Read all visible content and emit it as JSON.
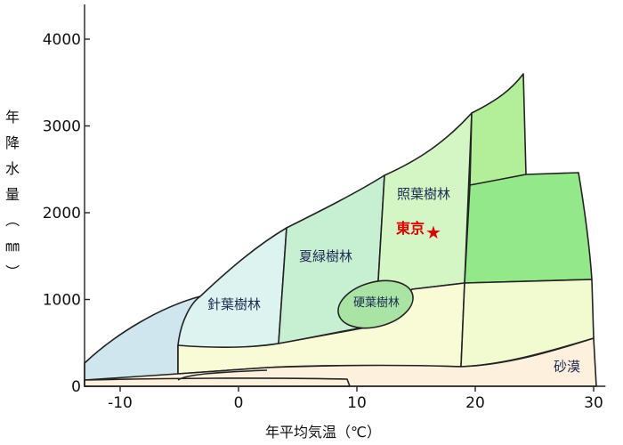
{
  "chart_data": {
    "type": "diagram",
    "xlabel": "年平均気温（℃）",
    "ylabel_chars": [
      "年",
      "降",
      "水",
      "量",
      "（",
      "㎜",
      "）"
    ],
    "xlim": [
      -13.2,
      31
    ],
    "ylim": [
      0,
      4400
    ],
    "x_ticks": [
      {
        "value": -10,
        "label": "-10"
      },
      {
        "value": 0,
        "label": "0"
      },
      {
        "value": 10,
        "label": "10"
      },
      {
        "value": 20,
        "label": "20"
      },
      {
        "value": 30,
        "label": "30"
      }
    ],
    "y_ticks": [
      {
        "value": 0,
        "label": "0"
      },
      {
        "value": 1000,
        "label": "1000"
      },
      {
        "value": 2000,
        "label": "2000"
      },
      {
        "value": 3000,
        "label": "3000"
      },
      {
        "value": 4000,
        "label": "4000"
      }
    ],
    "labels": {
      "conifer": "針葉樹林",
      "summer_green": "夏緑樹林",
      "laurel": "照葉樹林",
      "sclerophyll": "硬葉樹林",
      "desert": "砂漠",
      "tokyo": "東京"
    },
    "tokyo_point": {
      "x": 16.3,
      "y": 1800
    },
    "colors": {
      "tundra": "#cfe6ef",
      "conifer": "#dcf3ef",
      "summer_green": "#c7efd1",
      "laurel": "#d4f5c4",
      "sclerophyll": "#a9e4a5",
      "tropical_seasonal": "#93e88a",
      "subtropical": "#b2ef98",
      "rainforest": "#76db5d",
      "grassland": "#f8fbd6",
      "savanna": "#f1fbcf",
      "desert": "#fdf0dc",
      "tokyo": "#e00000"
    }
  }
}
